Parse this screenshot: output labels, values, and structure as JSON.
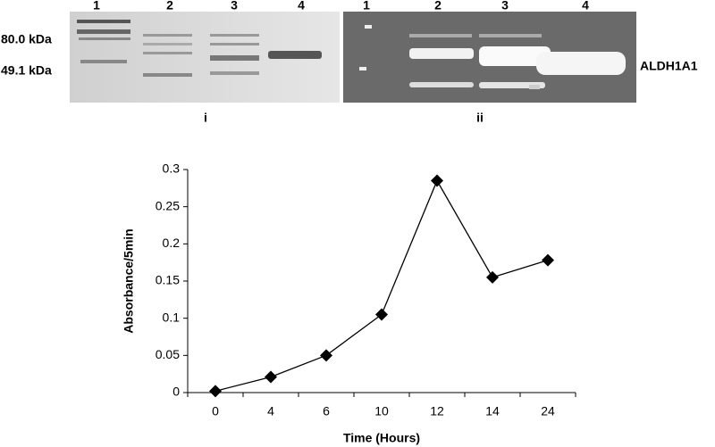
{
  "gel": {
    "lanes_i": [
      "1",
      "2",
      "3",
      "4"
    ],
    "lanes_ii": [
      "1",
      "2",
      "3",
      "4"
    ],
    "markers": [
      "80.0 kDa",
      "49.1 kDa"
    ],
    "panel_i": "i",
    "panel_ii": "ii",
    "band_label": "ALDH1A1"
  },
  "chart_data": {
    "type": "line",
    "categories": [
      "0",
      "4",
      "6",
      "10",
      "12",
      "14",
      "24"
    ],
    "values": [
      0.002,
      0.021,
      0.05,
      0.105,
      0.285,
      0.155,
      0.178
    ],
    "color": "#000000",
    "ylim": [
      0,
      0.3
    ],
    "yticks": [
      0,
      0.05,
      0.1,
      0.15,
      0.2,
      0.25,
      0.3
    ],
    "xlabel": "Time (Hours)",
    "ylabel": "Absorbance/5min",
    "grid": false
  }
}
